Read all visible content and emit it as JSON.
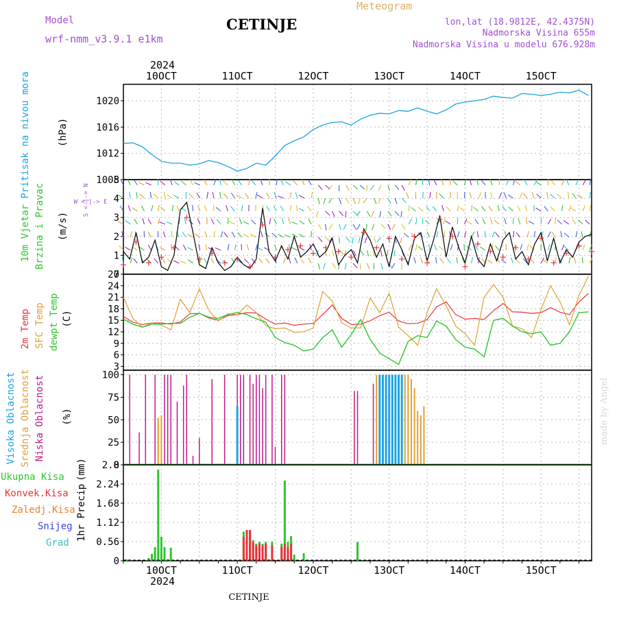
{
  "header": {
    "model_label": "Model",
    "model_name": "wrf-nmm_v3.9.1 e1km",
    "station": "CETINJE",
    "meteogram_label": "Meteogram",
    "lonlat": "lon,lat (18.9812E, 42.4375N)",
    "elevation": "Nadmorska Visina 655m",
    "model_elevation": "Nadmorska Visina u modelu 676.928m"
  },
  "footer": {
    "station": "CETINJE",
    "credit": "made by Angel"
  },
  "time_axis": {
    "year": "2024",
    "day_labels": [
      "10OCT",
      "11OCT",
      "12OCT",
      "13OCT",
      "14OCT",
      "15OCT"
    ],
    "day_positions_hours": [
      12,
      36,
      60,
      84,
      108,
      132
    ],
    "range_hours": [
      0,
      148
    ],
    "note_hours_start": "09 Oct 2024 00 UTC"
  },
  "colors": {
    "pressure": "#1ca3e4",
    "wind_speed": "#000000",
    "gust": "#e8333b",
    "t2m": "#e8333b",
    "tsfc": "#e0a030",
    "dewpoint": "#2ec52e",
    "cloud_high": "#1ca3e4",
    "cloud_mid": "#e0a030",
    "cloud_low": "#c0188a",
    "precip_total": "#2ec52e",
    "precip_conv": "#e8333b",
    "precip_frozen": "#f07f2a",
    "snow": "#4040e0",
    "graupel": "#2ec5c5",
    "model_text": "#a050d0",
    "meteogram_text": "#e0b060",
    "wind_dir_text": "#a050d0"
  },
  "chart_data": [
    {
      "type": "line",
      "id": "pressure",
      "ylabel": "Pritisak na nivou mora",
      "unit": "(hPa)",
      "ylim": [
        1008,
        1022.5
      ],
      "yticks": [
        1012,
        1016,
        1020
      ],
      "series": [
        {
          "name": "Pritisak na nivou mora",
          "x": [
            0,
            3,
            6,
            9,
            12,
            15,
            18,
            21,
            24,
            27,
            30,
            33,
            36,
            39,
            42,
            45,
            48,
            51,
            54,
            57,
            60,
            63,
            66,
            69,
            72,
            75,
            78,
            81,
            84,
            87,
            90,
            93,
            96,
            99,
            102,
            105,
            108,
            111,
            114,
            117,
            120,
            123,
            126,
            129,
            132,
            135,
            138,
            141,
            144,
            147
          ],
          "y": [
            1013.5,
            1013.6,
            1013.0,
            1011.8,
            1010.8,
            1010.5,
            1010.5,
            1010.2,
            1010.4,
            1010.9,
            1010.6,
            1010.0,
            1009.3,
            1009.7,
            1010.5,
            1010.2,
            1011.6,
            1013.2,
            1013.9,
            1014.5,
            1015.6,
            1016.3,
            1016.7,
            1016.8,
            1016.3,
            1017.2,
            1017.8,
            1018.1,
            1018.0,
            1018.5,
            1018.4,
            1018.9,
            1018.4,
            1018.0,
            1018.6,
            1019.5,
            1019.8,
            1020.0,
            1020.2,
            1020.7,
            1020.5,
            1020.4,
            1021.1,
            1021.0,
            1020.8,
            1021.0,
            1021.3,
            1021.2,
            1021.6,
            1020.8
          ]
        }
      ]
    },
    {
      "type": "line",
      "id": "wind",
      "ylabel": "10m Vjetar",
      "ylabel2": "Brzina i Pravac",
      "unit": "(m/s)",
      "direction_legend": "W <-|-> E",
      "direction_legend_v": "S <-|-> N",
      "ylim": [
        0,
        5
      ],
      "yticks": [
        0,
        1,
        2,
        3,
        4,
        5
      ],
      "series": [
        {
          "name": "Brzina",
          "x": [
            0,
            2,
            4,
            6,
            8,
            10,
            12,
            14,
            16,
            18,
            20,
            22,
            24,
            26,
            28,
            30,
            32,
            34,
            36,
            38,
            40,
            42,
            44,
            46,
            48,
            50,
            52,
            54,
            56,
            58,
            60,
            62,
            64,
            66,
            68,
            70,
            72,
            74,
            76,
            78,
            80,
            82,
            84,
            86,
            88,
            90,
            92,
            94,
            96,
            98,
            100,
            102,
            104,
            106,
            108,
            110,
            112,
            114,
            116,
            118,
            120,
            122,
            124,
            126,
            128,
            130,
            132,
            134,
            136,
            138,
            140,
            142,
            144,
            146,
            148
          ],
          "y": [
            1.2,
            0.8,
            2.2,
            0.6,
            0.9,
            1.8,
            0.4,
            0.2,
            1.0,
            3.4,
            3.8,
            2.2,
            0.5,
            0.3,
            1.4,
            0.6,
            0.2,
            0.4,
            0.9,
            0.5,
            0.3,
            0.8,
            3.5,
            1.2,
            0.7,
            1.5,
            0.8,
            2.0,
            0.9,
            1.2,
            1.6,
            0.9,
            1.2,
            1.9,
            0.5,
            1.0,
            1.3,
            0.6,
            2.4,
            1.8,
            0.9,
            1.6,
            0.4,
            2.0,
            1.3,
            0.5,
            1.9,
            2.2,
            0.7,
            1.8,
            3.1,
            0.9,
            2.5,
            1.4,
            0.6,
            2.0,
            0.8,
            0.4,
            1.6,
            0.7,
            1.8,
            2.2,
            0.8,
            1.2,
            0.5,
            1.6,
            2.2,
            0.7,
            1.9,
            0.6,
            1.3,
            0.9,
            1.7,
            2.0,
            2.1
          ]
        },
        {
          "name": "Udari",
          "x": [
            0,
            4,
            8,
            12,
            16,
            20,
            24,
            28,
            32,
            36,
            40,
            44,
            48,
            52,
            56,
            60,
            64,
            68,
            72,
            76,
            80,
            84,
            88,
            92,
            96,
            100,
            104,
            108,
            112,
            116,
            120,
            124,
            128,
            132,
            136,
            140,
            144,
            148
          ],
          "y": [
            0.5,
            1.7,
            0.6,
            0.9,
            1.4,
            3.0,
            0.8,
            1.1,
            0.6,
            0.8,
            0.4,
            2.6,
            0.9,
            1.3,
            1.5,
            1.1,
            1.4,
            1.2,
            0.9,
            2.2,
            1.4,
            1.9,
            0.8,
            2.0,
            0.6,
            2.9,
            2.0,
            0.4,
            1.6,
            1.2,
            0.9,
            1.4,
            0.8,
            1.9,
            0.6,
            1.1,
            1.5,
            1.2
          ]
        }
      ]
    },
    {
      "type": "line",
      "id": "temperature",
      "ylabel": "2m Temp",
      "ylabel2": "SFC Temp",
      "ylabel3": "dewpt Temp",
      "unit": "(C)",
      "ylim": [
        2,
        27
      ],
      "yticks": [
        3,
        6,
        9,
        12,
        15,
        18,
        21,
        24,
        27
      ],
      "series": [
        {
          "name": "2m Temp",
          "x": [
            0,
            3,
            6,
            9,
            12,
            15,
            18,
            21,
            24,
            27,
            30,
            33,
            36,
            39,
            42,
            45,
            48,
            51,
            54,
            57,
            60,
            63,
            66,
            69,
            72,
            75,
            78,
            81,
            84,
            87,
            90,
            93,
            96,
            99,
            102,
            105,
            108,
            111,
            114,
            117,
            120,
            123,
            126,
            129,
            132,
            135,
            138,
            141,
            144,
            147
          ],
          "y": [
            16.0,
            14.5,
            13.9,
            14.3,
            14.3,
            14.0,
            14.6,
            16.7,
            16.8,
            15.6,
            15.0,
            16.2,
            16.5,
            17.0,
            16.9,
            15.3,
            14.0,
            14.3,
            13.7,
            14.0,
            14.2,
            16.5,
            19.0,
            15.5,
            13.9,
            14.0,
            14.9,
            16.2,
            17.1,
            14.8,
            14.1,
            14.2,
            15.2,
            18.5,
            19.8,
            16.5,
            15.3,
            15.5,
            15.2,
            17.5,
            19.4,
            17.2,
            17.1,
            16.8,
            17.0,
            18.3,
            17.1,
            16.5,
            19.8,
            22.0
          ]
        },
        {
          "name": "SFC Temp",
          "x": [
            0,
            3,
            6,
            9,
            12,
            15,
            18,
            21,
            24,
            27,
            30,
            33,
            36,
            39,
            42,
            45,
            48,
            51,
            54,
            57,
            60,
            63,
            66,
            69,
            72,
            75,
            78,
            81,
            84,
            87,
            90,
            93,
            96,
            99,
            102,
            105,
            108,
            111,
            114,
            117,
            120,
            123,
            126,
            129,
            132,
            135,
            138,
            141,
            144,
            147
          ],
          "y": [
            21.0,
            15.5,
            13.2,
            14.3,
            13.8,
            12.5,
            20.5,
            17.0,
            23.2,
            17.6,
            14.8,
            16.7,
            16.5,
            19.0,
            17.0,
            13.6,
            12.8,
            13.0,
            11.9,
            12.0,
            13.0,
            22.5,
            20.0,
            14.4,
            13.0,
            13.0,
            20.8,
            17.0,
            22.0,
            13.2,
            11.0,
            8.5,
            17.0,
            23.2,
            18.8,
            13.5,
            11.5,
            8.5,
            21.0,
            24.3,
            21.0,
            13.5,
            12.8,
            10.5,
            17.8,
            24.0,
            19.8,
            13.8,
            21.5,
            26.5
          ]
        },
        {
          "name": "dewpt Temp",
          "x": [
            0,
            3,
            6,
            9,
            12,
            15,
            18,
            21,
            24,
            27,
            30,
            33,
            36,
            39,
            42,
            45,
            48,
            51,
            54,
            57,
            60,
            63,
            66,
            69,
            72,
            75,
            78,
            81,
            84,
            87,
            90,
            93,
            96,
            99,
            102,
            105,
            108,
            111,
            114,
            117,
            120,
            123,
            126,
            129,
            132,
            135,
            138,
            141,
            144,
            147
          ],
          "y": [
            15.3,
            14.0,
            13.2,
            14.0,
            14.0,
            14.2,
            14.2,
            15.8,
            16.8,
            15.8,
            15.5,
            16.5,
            17.0,
            16.5,
            15.4,
            14.5,
            10.5,
            9.2,
            8.5,
            7.0,
            7.5,
            10.5,
            12.5,
            8.0,
            11.3,
            15.2,
            10.0,
            6.5,
            5.0,
            3.5,
            9.5,
            11.0,
            10.5,
            14.8,
            13.5,
            10.0,
            8.0,
            7.5,
            5.5,
            15.0,
            15.5,
            13.5,
            12.0,
            11.5,
            12.0,
            8.5,
            9.0,
            12.0,
            17.0,
            17.2
          ]
        }
      ]
    },
    {
      "type": "bar",
      "id": "clouds",
      "ylabel": "Visoka Oblacnost",
      "ylabel2": "Srednja Oblacnost",
      "ylabel3": "Niska Oblacnost",
      "unit": "(%)",
      "ylim": [
        0,
        105
      ],
      "yticks": [
        0,
        25,
        50,
        75,
        100
      ],
      "series": [
        {
          "name": "Niska Oblacnost",
          "x": [
            2,
            5,
            7,
            10,
            13,
            14,
            15,
            17,
            19,
            20,
            22,
            24,
            28,
            32,
            36,
            37,
            38,
            40,
            41,
            42,
            43,
            44,
            45,
            47,
            48,
            50,
            51,
            73,
            74,
            79,
            84,
            85,
            86,
            87
          ],
          "y": [
            100,
            36,
            100,
            100,
            100,
            100,
            100,
            70,
            88,
            100,
            10,
            30,
            95,
            100,
            100,
            100,
            100,
            100,
            90,
            100,
            100,
            85,
            100,
            100,
            20,
            100,
            100,
            82,
            82,
            90,
            30,
            45,
            40,
            35
          ]
        },
        {
          "name": "Srednja Oblacnost",
          "x": [
            11,
            12,
            80,
            81,
            82,
            83,
            84,
            85,
            86,
            87,
            88,
            89,
            90,
            91,
            92,
            93,
            94,
            95
          ],
          "y": [
            52,
            55,
            100,
            100,
            100,
            100,
            100,
            100,
            100,
            100,
            100,
            100,
            100,
            95,
            85,
            60,
            55,
            65
          ]
        },
        {
          "name": "Visoka Oblacnost",
          "x": [
            36,
            81,
            82,
            83,
            84,
            85,
            86,
            87,
            88
          ],
          "y": [
            65,
            100,
            100,
            100,
            100,
            100,
            100,
            100,
            100
          ]
        }
      ]
    },
    {
      "type": "bar",
      "id": "precip",
      "ylabel": "1hr Precip",
      "unit": "(mm)",
      "legend": [
        "Ukupna Kisa",
        "Konvek.Kisa",
        "Zaledj.Kisa",
        "Snijeg",
        "Grad"
      ],
      "ylim": [
        0,
        2.8
      ],
      "yticks": [
        0,
        0.56,
        1.12,
        1.68,
        2.24,
        2.8
      ],
      "series": [
        {
          "name": "Ukupna Kisa",
          "x": [
            1,
            2,
            8,
            9,
            10,
            11,
            12,
            13,
            14,
            15,
            38,
            39,
            40,
            41,
            42,
            43,
            44,
            45,
            46,
            47,
            50,
            51,
            52,
            53,
            54,
            57,
            74
          ],
          "y": [
            0.04,
            0.04,
            0.08,
            0.2,
            0.4,
            2.66,
            0.7,
            0.4,
            0.04,
            0.38,
            0.85,
            0.9,
            0.9,
            0.6,
            0.5,
            0.55,
            0.5,
            0.55,
            0.04,
            0.55,
            0.5,
            2.34,
            0.55,
            0.72,
            0.18,
            0.22,
            0.55
          ]
        },
        {
          "name": "Konvek.Kisa",
          "x": [
            38,
            39,
            40,
            41,
            42,
            43,
            44,
            45,
            46,
            47,
            50,
            51,
            52,
            53
          ],
          "y": [
            0.7,
            0.9,
            0.9,
            0.55,
            0.45,
            0.5,
            0.45,
            0.5,
            0.03,
            0.45,
            0.4,
            0.5,
            0.4,
            0.5
          ]
        }
      ]
    }
  ]
}
